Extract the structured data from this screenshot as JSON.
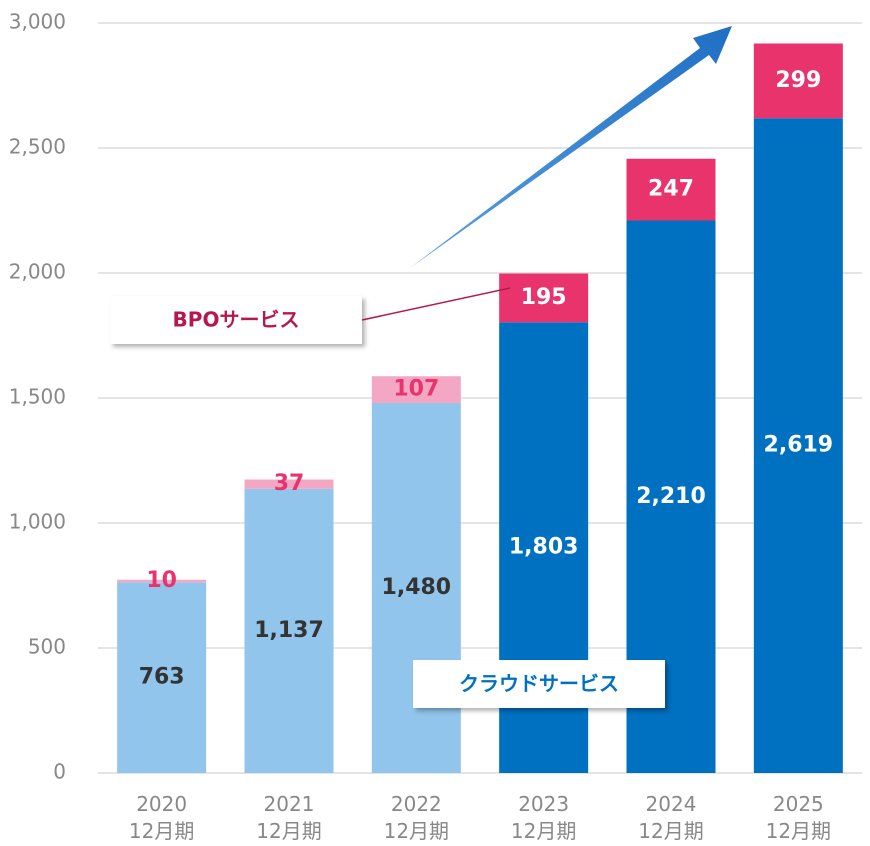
{
  "chart_data": {
    "type": "stacked_bar",
    "categories": [
      "2020\n12月期",
      "2021\n12月期",
      "2022\n12月期",
      "2023\n12月期",
      "2024\n12月期",
      "2025\n12月期"
    ],
    "series": [
      {
        "name": "クラウドサービス",
        "color": "#0070c0",
        "legend_color": "#0070c0",
        "colors": [
          "#92c5eb",
          "#92c5eb",
          "#92c5eb",
          "#0070c0",
          "#0070c0",
          "#0070c0"
        ],
        "label_colors": [
          "#333333",
          "#333333",
          "#333333",
          "#ffffff",
          "#ffffff",
          "#ffffff"
        ],
        "values": [
          763,
          1137,
          1480,
          1803,
          2210,
          2619
        ],
        "value_labels": [
          "763",
          "1,137",
          "1,480",
          "1,803",
          "2,210",
          "2,619"
        ]
      },
      {
        "name": "BPOサービス",
        "color": "#e8336d",
        "legend_color": "#b5174f",
        "colors": [
          "#f4a7c3",
          "#f4a7c3",
          "#f4a7c3",
          "#e8336d",
          "#e8336d",
          "#e8336d"
        ],
        "label_colors": [
          "#e8336d",
          "#e8336d",
          "#e8336d",
          "#ffffff",
          "#ffffff",
          "#ffffff"
        ],
        "values": [
          10,
          37,
          107,
          195,
          247,
          299
        ],
        "value_labels": [
          "10",
          "37",
          "107",
          "195",
          "247",
          "299"
        ]
      }
    ],
    "ylim": [
      0,
      3000
    ],
    "yticks": [
      0,
      500,
      {
        "value": 1000,
        "label": "1,000"
      },
      {
        "value": 1500,
        "label": "1,500"
      },
      {
        "value": 2000,
        "label": "2,000"
      },
      {
        "value": 2500,
        "label": "2,500"
      },
      {
        "value": 3000,
        "label": "3,000"
      }
    ],
    "grid": true
  }
}
